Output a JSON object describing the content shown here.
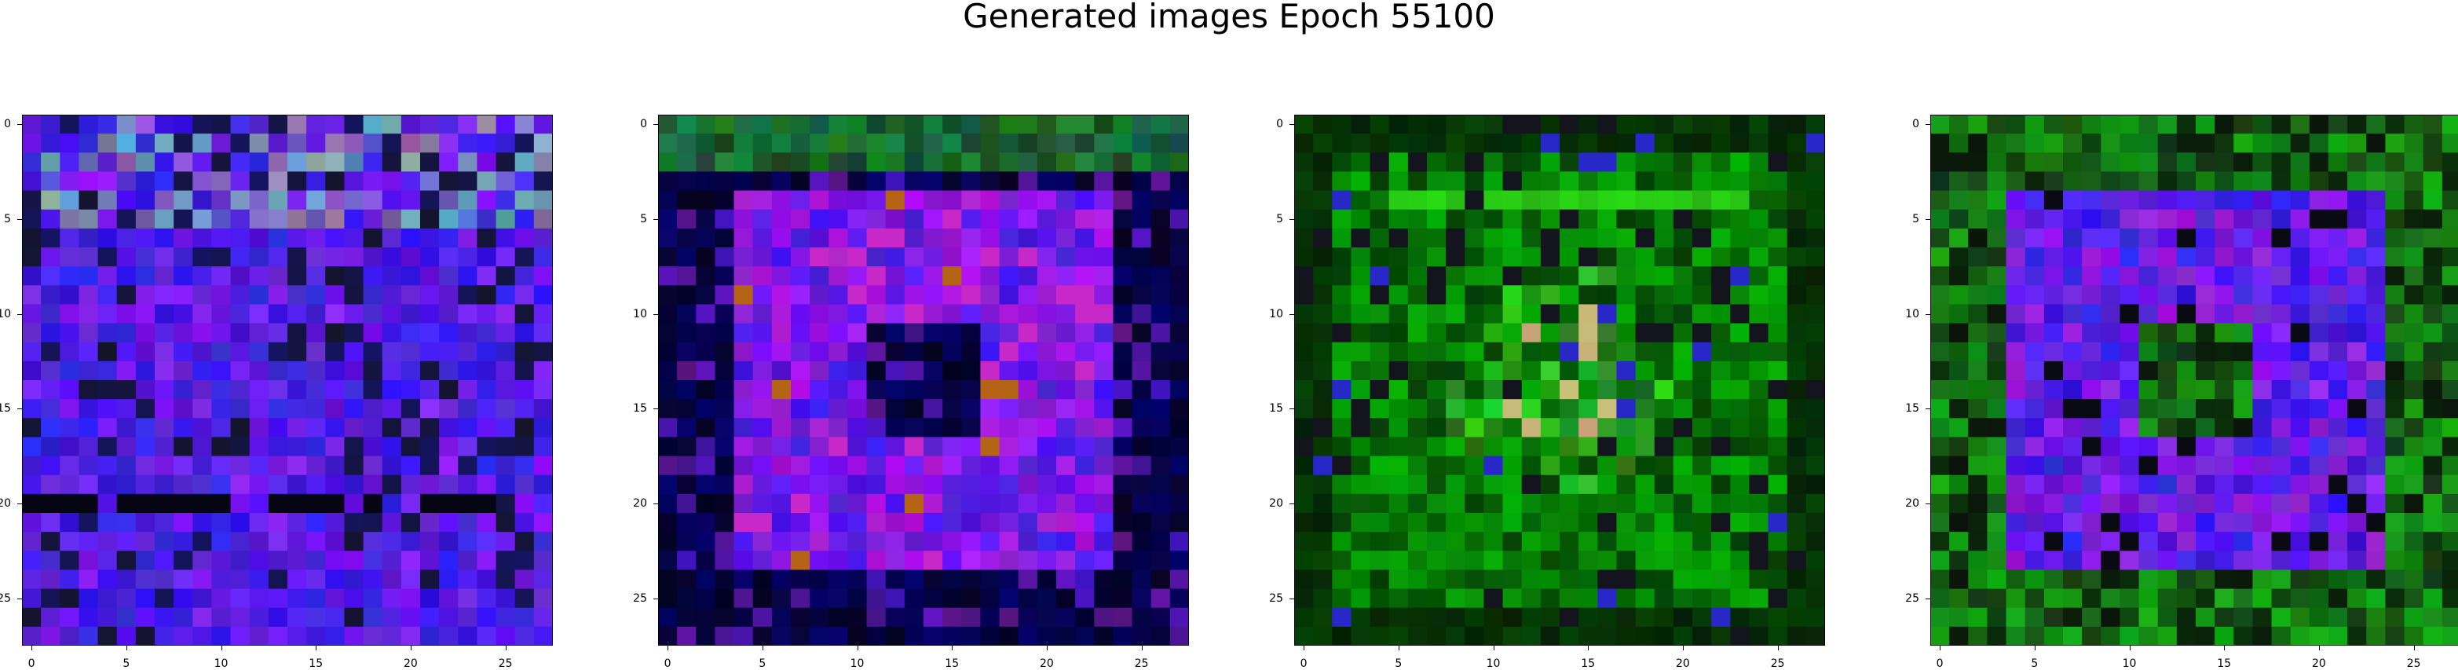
{
  "title": "Generated images Epoch 55100",
  "panels": [
    {
      "id": "panel-1",
      "theme": "blue-noise",
      "x_ticks": [
        "0",
        "5",
        "10",
        "15",
        "20",
        "25"
      ],
      "y_ticks": [
        "0",
        "5",
        "10",
        "15",
        "20",
        "25"
      ]
    },
    {
      "id": "panel-2",
      "theme": "blue-dark",
      "x_ticks": [
        "0",
        "5",
        "10",
        "15",
        "20",
        "25"
      ],
      "y_ticks": [
        "0",
        "5",
        "10",
        "15",
        "20",
        "25"
      ]
    },
    {
      "id": "panel-3",
      "theme": "green",
      "x_ticks": [
        "0",
        "5",
        "10",
        "15",
        "20",
        "25"
      ],
      "y_ticks": [
        "0",
        "5",
        "10",
        "15",
        "20",
        "25"
      ]
    },
    {
      "id": "panel-4",
      "theme": "green-blue",
      "x_ticks": [
        "0",
        "5",
        "10",
        "15",
        "20",
        "25"
      ],
      "y_ticks": [
        "0",
        "5",
        "10",
        "15",
        "20",
        "25"
      ]
    }
  ],
  "colors": {
    "blue": "#2a10e0",
    "purple": "#6a18d8",
    "green": "#1a8a10",
    "dark": "#050520"
  }
}
